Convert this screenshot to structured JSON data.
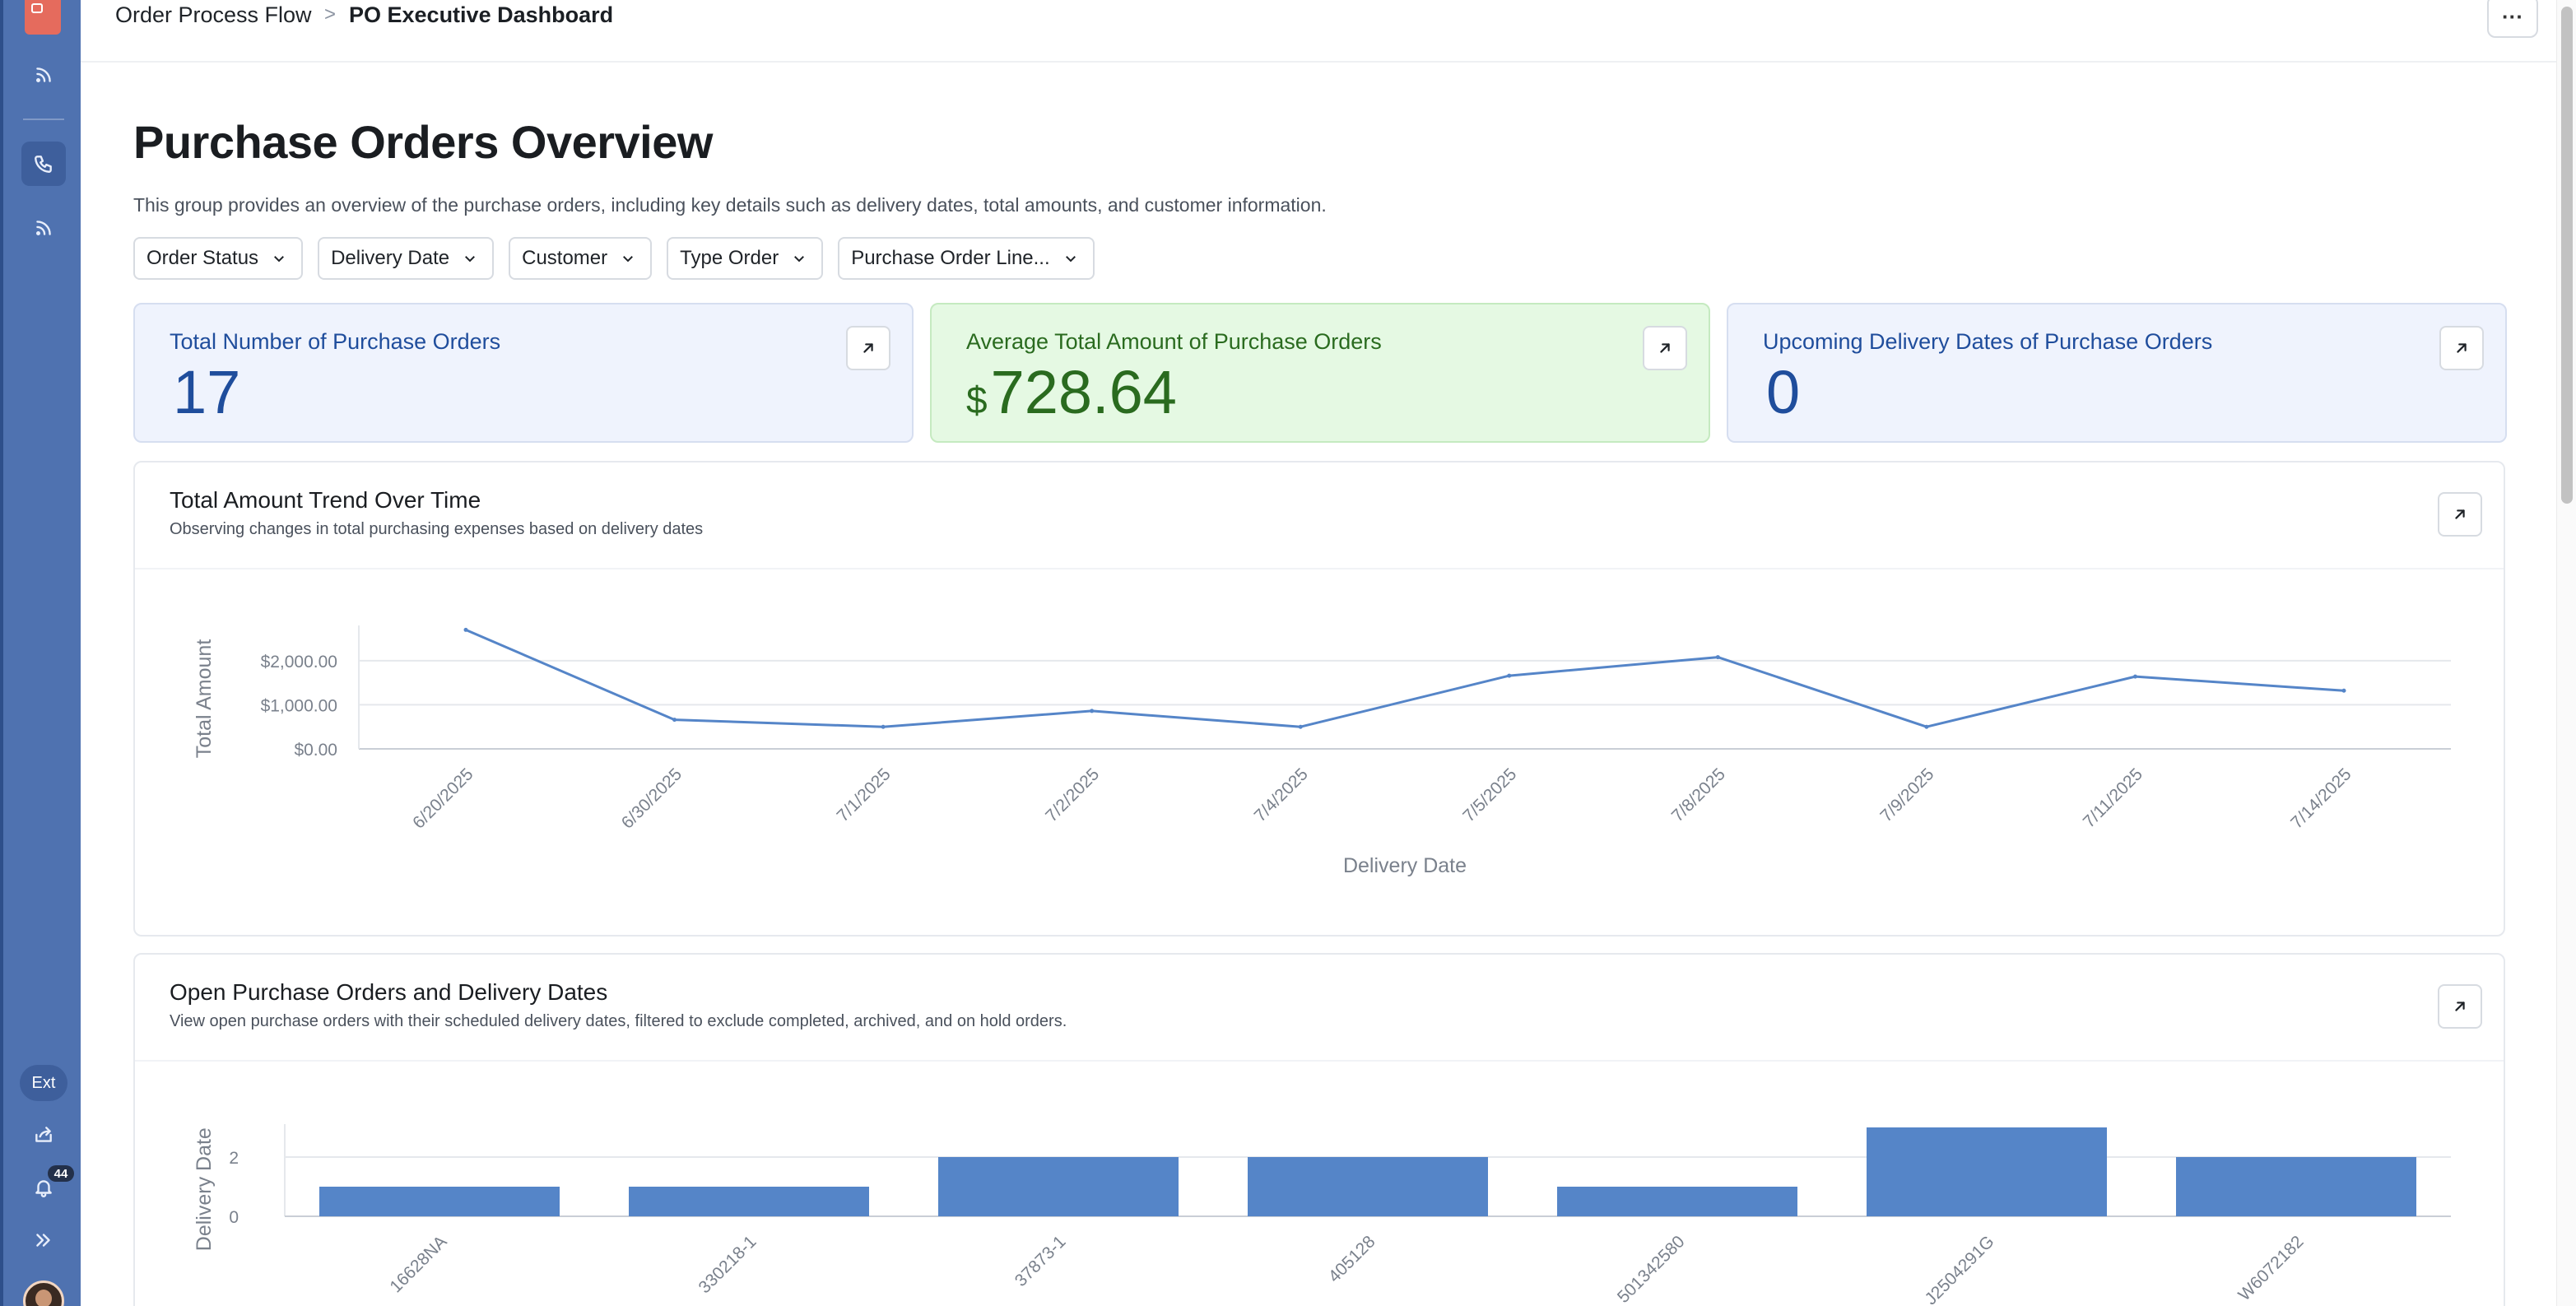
{
  "breadcrumb": {
    "parent": "Order Process Flow",
    "separator": ">",
    "current": "PO Executive Dashboard"
  },
  "toolbar": {
    "more_label": "···"
  },
  "rail": {
    "ext_label": "Ext",
    "notification_count": "44",
    "icons": [
      "logo-icon",
      "rss-icon",
      "phone-icon",
      "rss-icon",
      "share-icon",
      "bell-icon",
      "expand-icon"
    ]
  },
  "header": {
    "title": "Purchase Orders Overview",
    "description": "This group provides an overview of the purchase orders, including key details such as delivery dates, total amounts, and customer information."
  },
  "filters": [
    "Order Status",
    "Delivery Date",
    "Customer",
    "Type Order",
    "Purchase Order Line..."
  ],
  "kpis": [
    {
      "label": "Total Number of Purchase Orders",
      "currency": "",
      "value": "17",
      "color": "#1f4d9c"
    },
    {
      "label": "Average Total Amount of Purchase Orders",
      "currency": "$",
      "value": "728.64",
      "color": "#2a6b1f"
    },
    {
      "label": "Upcoming Delivery Dates of Purchase Orders",
      "currency": "",
      "value": "0",
      "color": "#1f4d9c"
    }
  ],
  "trend_card": {
    "title": "Total Amount Trend Over Time",
    "subtitle": "Observing changes in total purchasing expenses based on delivery dates"
  },
  "open_card": {
    "title": "Open Purchase Orders and Delivery Dates",
    "subtitle": "View open purchase orders with their scheduled delivery dates, filtered to exclude completed, archived, and on hold orders."
  },
  "colors": {
    "series": "#5585c8",
    "rail": "#4f72b0",
    "accent_blue": "#1f4d9c",
    "accent_green": "#2a6b1f"
  },
  "chart_data": [
    {
      "type": "line",
      "x": [
        "6/20/2025",
        "6/30/2025",
        "7/1/2025",
        "7/2/2025",
        "7/4/2025",
        "7/5/2025",
        "7/8/2025",
        "7/9/2025",
        "7/11/2025",
        "7/14/2025"
      ],
      "series": [
        {
          "values": [
            2700,
            660,
            500,
            860,
            500,
            1660,
            2080,
            500,
            1640,
            1320
          ]
        }
      ],
      "xlabel": "Delivery Date",
      "ylabel": "Total Amount",
      "yticks": [
        0,
        1000,
        2000
      ],
      "ytick_labels": [
        "$0.00",
        "$1,000.00",
        "$2,000.00"
      ],
      "ylim": [
        0,
        2800
      ],
      "grid": true
    },
    {
      "type": "bar",
      "categories": [
        "16628NA",
        "330218-1",
        "37873-1",
        "405128",
        "501342580",
        "J2504291G",
        "W6072182"
      ],
      "values": [
        1,
        1,
        2,
        2,
        1,
        3,
        2
      ],
      "xlabel": "",
      "ylabel": "Delivery Date",
      "yticks": [
        0,
        2
      ],
      "ytick_labels": [
        "0",
        "2"
      ],
      "ylim": [
        0,
        3
      ],
      "grid": true
    }
  ]
}
